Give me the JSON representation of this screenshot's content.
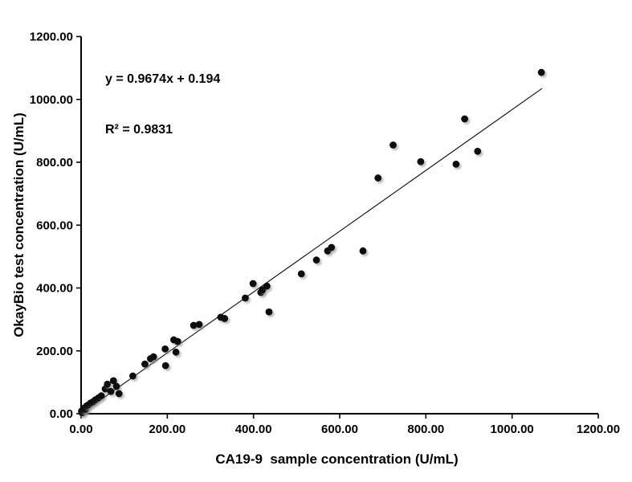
{
  "chart": {
    "equation_line1": "y = 0.9674x + 0.194",
    "equation_line2": "R² = 0.9831",
    "xlabel": "CA19-9  sample concentration (U/mL)",
    "ylabel": "OkayBio test concentration (U/mL)"
  },
  "colors": {
    "background": "#ffffff",
    "point": "#0a0a0a",
    "point_shadow": "#8a8a8a",
    "trendline": "#1a1a1a",
    "axis": "#000000",
    "text": "#000000"
  },
  "chart_data": {
    "type": "scatter",
    "title": "",
    "xlabel": "CA19-9  sample concentration (U/mL)",
    "ylabel": "OkayBio test concentration (U/mL)",
    "xlim": [
      0,
      1200
    ],
    "ylim": [
      0,
      1200
    ],
    "x_ticks": [
      0,
      200,
      400,
      600,
      800,
      1000,
      1200
    ],
    "y_ticks": [
      0,
      200,
      400,
      600,
      800,
      1000,
      1200
    ],
    "tick_decimals": 2,
    "grid": false,
    "legend": "none",
    "annotations": [
      "y = 0.9674x + 0.194",
      "R² = 0.9831"
    ],
    "trendline": {
      "type": "linear",
      "slope": 0.9674,
      "intercept": 0.194,
      "x_start": 0,
      "x_end": 1070
    },
    "points": [
      [
        1,
        8
      ],
      [
        2,
        3
      ],
      [
        4,
        12
      ],
      [
        7,
        18
      ],
      [
        10,
        14
      ],
      [
        13,
        25
      ],
      [
        17,
        28
      ],
      [
        22,
        34
      ],
      [
        28,
        38
      ],
      [
        33,
        44
      ],
      [
        40,
        50
      ],
      [
        47,
        57
      ],
      [
        56,
        79
      ],
      [
        61,
        94
      ],
      [
        69,
        71
      ],
      [
        75,
        105
      ],
      [
        82,
        87
      ],
      [
        88,
        64
      ],
      [
        120,
        120
      ],
      [
        148,
        158
      ],
      [
        161,
        175
      ],
      [
        168,
        181
      ],
      [
        195,
        206
      ],
      [
        196,
        153
      ],
      [
        215,
        235
      ],
      [
        224,
        230
      ],
      [
        220,
        196
      ],
      [
        261,
        281
      ],
      [
        274,
        284
      ],
      [
        324,
        307
      ],
      [
        333,
        303
      ],
      [
        381,
        368
      ],
      [
        399,
        414
      ],
      [
        417,
        386
      ],
      [
        421,
        394
      ],
      [
        431,
        406
      ],
      [
        436,
        324
      ],
      [
        511,
        445
      ],
      [
        546,
        489
      ],
      [
        572,
        518
      ],
      [
        581,
        529
      ],
      [
        654,
        518
      ],
      [
        689,
        750
      ],
      [
        724,
        855
      ],
      [
        788,
        802
      ],
      [
        870,
        794
      ],
      [
        890,
        938
      ],
      [
        920,
        835
      ],
      [
        1068,
        1086
      ]
    ]
  }
}
